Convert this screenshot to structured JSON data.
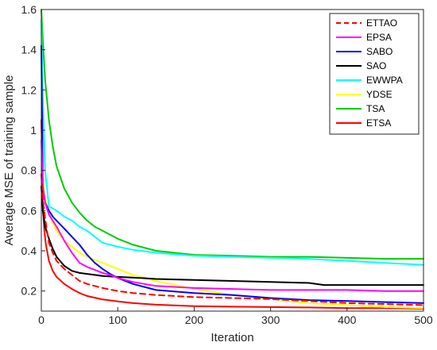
{
  "chart_data": {
    "type": "line",
    "xlabel": "Iteration",
    "ylabel": "Average MSE of training sample",
    "xlim": [
      0,
      500
    ],
    "ylim": [
      0.1,
      1.6
    ],
    "xticks": [
      "0",
      "100",
      "200",
      "300",
      "400",
      "500"
    ],
    "yticks": [
      "0.2",
      "0.4",
      "0.6",
      "0.8",
      "1",
      "1.2",
      "1.4",
      "1.6"
    ],
    "grid": false,
    "legend_position": "top-right",
    "series": [
      {
        "name": "ETTAO",
        "color": "#ff0000",
        "dash": true,
        "x": [
          0,
          2,
          5,
          10,
          15,
          20,
          30,
          40,
          50,
          60,
          70,
          80,
          100,
          120,
          150,
          200,
          250,
          300,
          350,
          400,
          450,
          500
        ],
        "y": [
          0.78,
          0.66,
          0.56,
          0.44,
          0.39,
          0.35,
          0.31,
          0.28,
          0.25,
          0.235,
          0.225,
          0.215,
          0.2,
          0.19,
          0.18,
          0.17,
          0.165,
          0.16,
          0.15,
          0.14,
          0.135,
          0.13
        ]
      },
      {
        "name": "EPSA",
        "color": "#ff00ff",
        "dash": false,
        "x": [
          0,
          2,
          5,
          10,
          15,
          20,
          30,
          40,
          50,
          60,
          70,
          80,
          90,
          100,
          120,
          150,
          200,
          250,
          300,
          350,
          400,
          450,
          500
        ],
        "y": [
          0.95,
          0.72,
          0.64,
          0.58,
          0.55,
          0.52,
          0.45,
          0.39,
          0.34,
          0.32,
          0.305,
          0.29,
          0.28,
          0.265,
          0.245,
          0.225,
          0.215,
          0.21,
          0.205,
          0.205,
          0.205,
          0.2,
          0.2
        ]
      },
      {
        "name": "SABO",
        "color": "#0000ff",
        "dash": false,
        "x": [
          0,
          2,
          5,
          10,
          15,
          20,
          30,
          40,
          50,
          60,
          70,
          80,
          90,
          100,
          120,
          150,
          200,
          250,
          300,
          350,
          400,
          450,
          500
        ],
        "y": [
          1.42,
          0.72,
          0.64,
          0.6,
          0.57,
          0.55,
          0.51,
          0.47,
          0.43,
          0.38,
          0.34,
          0.31,
          0.285,
          0.265,
          0.235,
          0.205,
          0.19,
          0.18,
          0.165,
          0.155,
          0.15,
          0.145,
          0.14
        ]
      },
      {
        "name": "SAO",
        "color": "#000000",
        "dash": false,
        "x": [
          0,
          2,
          5,
          10,
          15,
          20,
          30,
          40,
          50,
          60,
          70,
          80,
          100,
          130,
          150,
          200,
          250,
          300,
          350,
          370,
          400,
          450,
          500
        ],
        "y": [
          0.72,
          0.6,
          0.52,
          0.46,
          0.41,
          0.37,
          0.325,
          0.3,
          0.29,
          0.285,
          0.28,
          0.275,
          0.27,
          0.265,
          0.26,
          0.255,
          0.25,
          0.245,
          0.24,
          0.23,
          0.23,
          0.23,
          0.23
        ]
      },
      {
        "name": "EWWPA",
        "color": "#00ffff",
        "dash": false,
        "x": [
          0,
          2,
          5,
          10,
          20,
          30,
          40,
          50,
          60,
          70,
          80,
          100,
          120,
          150,
          200,
          250,
          300,
          350,
          400,
          450,
          500
        ],
        "y": [
          1.55,
          1.15,
          0.8,
          0.62,
          0.6,
          0.57,
          0.55,
          0.52,
          0.5,
          0.47,
          0.44,
          0.42,
          0.405,
          0.39,
          0.375,
          0.37,
          0.365,
          0.36,
          0.35,
          0.34,
          0.33
        ]
      },
      {
        "name": "YDSE",
        "color": "#ffff00",
        "dash": false,
        "x": [
          0,
          2,
          5,
          10,
          15,
          20,
          30,
          40,
          50,
          60,
          70,
          80,
          100,
          120,
          150,
          200,
          250,
          300,
          350,
          400,
          450,
          500
        ],
        "y": [
          0.98,
          0.74,
          0.66,
          0.59,
          0.54,
          0.5,
          0.45,
          0.42,
          0.39,
          0.37,
          0.355,
          0.34,
          0.31,
          0.28,
          0.25,
          0.21,
          0.18,
          0.16,
          0.14,
          0.13,
          0.12,
          0.115
        ]
      },
      {
        "name": "TSA",
        "color": "#00cc00",
        "dash": false,
        "x": [
          0,
          2,
          5,
          10,
          15,
          20,
          30,
          40,
          50,
          60,
          70,
          80,
          100,
          120,
          150,
          200,
          250,
          300,
          350,
          400,
          450,
          500
        ],
        "y": [
          1.6,
          1.45,
          1.25,
          1.05,
          0.92,
          0.82,
          0.71,
          0.64,
          0.59,
          0.55,
          0.52,
          0.5,
          0.46,
          0.43,
          0.4,
          0.38,
          0.375,
          0.37,
          0.37,
          0.365,
          0.36,
          0.36
        ]
      },
      {
        "name": "ETSA",
        "color": "#ff0000",
        "dash": false,
        "x": [
          0,
          2,
          4,
          6,
          8,
          10,
          15,
          20,
          30,
          40,
          50,
          60,
          80,
          100,
          120,
          150,
          200,
          250,
          300,
          350,
          400,
          450,
          500
        ],
        "y": [
          1.05,
          0.62,
          0.5,
          0.43,
          0.39,
          0.35,
          0.3,
          0.27,
          0.235,
          0.21,
          0.19,
          0.175,
          0.158,
          0.148,
          0.14,
          0.132,
          0.125,
          0.122,
          0.12,
          0.118,
          0.115,
          0.115,
          0.112
        ]
      }
    ]
  }
}
